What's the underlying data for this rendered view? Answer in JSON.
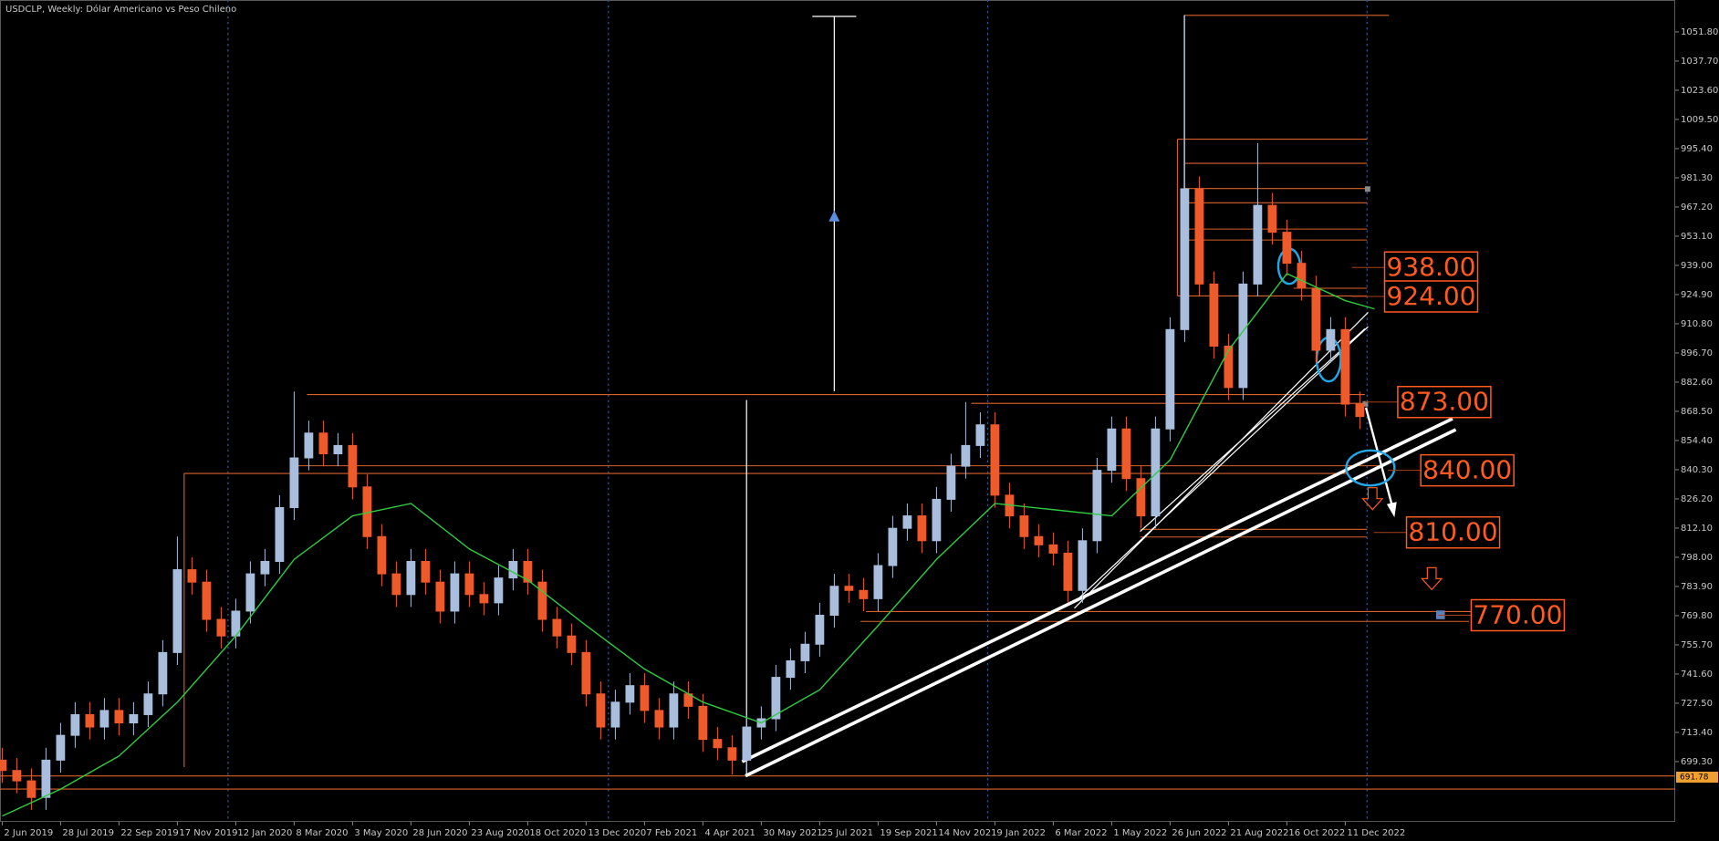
{
  "chart_data": {
    "type": "candlestick",
    "title": "USDCLP, Weekly:  Dólar Americano vs Peso Chileno",
    "x": [
      0,
      2,
      4,
      6,
      8,
      10,
      12,
      14,
      16,
      18,
      20,
      22,
      24,
      26,
      28,
      30,
      32,
      34,
      36,
      38,
      40,
      42,
      44,
      46,
      48,
      50,
      52,
      54,
      56,
      58,
      60,
      62,
      64,
      66,
      68,
      70,
      72,
      74,
      76,
      78,
      80,
      82,
      84,
      86,
      88,
      90,
      92,
      94,
      96,
      98,
      100,
      102,
      104,
      106,
      108,
      110,
      112,
      114,
      116,
      118,
      120,
      122,
      124,
      126,
      128,
      130,
      132,
      134,
      136,
      138,
      140,
      142,
      144,
      146,
      148,
      150,
      152,
      154,
      156,
      158,
      160,
      162,
      164,
      166,
      168,
      170,
      172,
      174,
      176,
      178,
      180,
      182,
      184,
      186
    ],
    "open": [
      700,
      695,
      690,
      682,
      700,
      712,
      722,
      716,
      724,
      718,
      722,
      732,
      752,
      792,
      786,
      768,
      760,
      772,
      790,
      796,
      822,
      846,
      858,
      848,
      852,
      832,
      808,
      790,
      780,
      796,
      786,
      772,
      790,
      780,
      776,
      788,
      796,
      786,
      768,
      760,
      752,
      732,
      716,
      728,
      736,
      724,
      716,
      732,
      726,
      710,
      706,
      700,
      716,
      720,
      740,
      748,
      756,
      770,
      784,
      782,
      778,
      794,
      812,
      818,
      806,
      826,
      842,
      852,
      862,
      828,
      818,
      808,
      804,
      800,
      782,
      806,
      840,
      860,
      836,
      818,
      860,
      908,
      976,
      930,
      900,
      880,
      930,
      968,
      955,
      940,
      928,
      898,
      908,
      872
    ],
    "high": [
      706,
      701,
      696,
      706,
      718,
      728,
      728,
      730,
      730,
      728,
      738,
      758,
      808,
      798,
      792,
      774,
      778,
      796,
      802,
      828,
      878,
      864,
      864,
      858,
      858,
      838,
      814,
      796,
      802,
      802,
      792,
      796,
      796,
      786,
      794,
      802,
      802,
      792,
      774,
      766,
      758,
      738,
      734,
      742,
      742,
      730,
      738,
      738,
      732,
      716,
      712,
      722,
      726,
      746,
      754,
      762,
      776,
      790,
      790,
      788,
      800,
      818,
      824,
      824,
      832,
      848,
      873,
      868,
      868,
      834,
      824,
      814,
      810,
      806,
      812,
      846,
      866,
      866,
      842,
      866,
      914,
      1060,
      982,
      936,
      906,
      936,
      998,
      974,
      961,
      946,
      934,
      914,
      914,
      878
    ],
    "low": [
      689,
      684,
      676,
      676,
      694,
      706,
      710,
      710,
      712,
      712,
      716,
      726,
      746,
      780,
      762,
      754,
      754,
      766,
      784,
      790,
      816,
      840,
      842,
      842,
      826,
      802,
      784,
      774,
      774,
      780,
      766,
      766,
      774,
      770,
      770,
      782,
      780,
      762,
      754,
      746,
      726,
      710,
      710,
      722,
      718,
      710,
      710,
      720,
      704,
      700,
      693,
      694,
      710,
      714,
      734,
      742,
      750,
      764,
      776,
      772,
      772,
      788,
      806,
      800,
      800,
      820,
      836,
      846,
      822,
      812,
      802,
      798,
      794,
      776,
      776,
      800,
      834,
      830,
      812,
      812,
      854,
      902,
      924,
      894,
      874,
      874,
      924,
      949,
      934,
      922,
      892,
      892,
      866,
      860
    ],
    "close": [
      695,
      690,
      682,
      700,
      712,
      722,
      716,
      724,
      718,
      722,
      732,
      752,
      792,
      786,
      768,
      760,
      772,
      790,
      796,
      822,
      846,
      858,
      848,
      852,
      832,
      808,
      790,
      780,
      796,
      786,
      772,
      790,
      780,
      776,
      788,
      796,
      786,
      768,
      760,
      752,
      732,
      716,
      728,
      736,
      724,
      716,
      732,
      726,
      710,
      706,
      700,
      716,
      720,
      740,
      748,
      756,
      770,
      784,
      782,
      778,
      794,
      812,
      818,
      806,
      826,
      842,
      852,
      862,
      828,
      818,
      808,
      804,
      800,
      782,
      806,
      840,
      860,
      836,
      818,
      860,
      908,
      976,
      930,
      900,
      880,
      930,
      968,
      955,
      940,
      928,
      898,
      908,
      872,
      866
    ],
    "up_color": "#a9bddc",
    "down_color": "#ee5b2a",
    "ma": {
      "color": "#2ecc40",
      "x": [
        0,
        8,
        16,
        24,
        32,
        40,
        48,
        56,
        64,
        72,
        80,
        88,
        96,
        104,
        112,
        120,
        128,
        136,
        144,
        152,
        160,
        168,
        176,
        184,
        188
      ],
      "values": [
        673,
        686,
        702,
        728,
        760,
        797,
        818,
        824,
        802,
        787,
        765,
        744,
        728,
        718,
        734,
        765,
        797,
        824,
        821,
        818,
        845,
        898,
        935,
        922,
        918
      ]
    },
    "xlim": [
      -0.3,
      229.2
    ],
    "ylim": [
      670.2,
      1067.2
    ],
    "yticks": [
      {
        "value": 1051.8,
        "label": "1051.80"
      },
      {
        "value": 1037.7,
        "label": "1037.70"
      },
      {
        "value": 1023.6,
        "label": "1023.60"
      },
      {
        "value": 1009.5,
        "label": "1009.50"
      },
      {
        "value": 995.4,
        "label": "995.40"
      },
      {
        "value": 981.3,
        "label": "981.30"
      },
      {
        "value": 967.2,
        "label": "967.20"
      },
      {
        "value": 953.1,
        "label": "953.10"
      },
      {
        "value": 939,
        "label": "939.00"
      },
      {
        "value": 924.9,
        "label": "924.90"
      },
      {
        "value": 910.8,
        "label": "910.80"
      },
      {
        "value": 896.7,
        "label": "896.70"
      },
      {
        "value": 882.6,
        "label": "882.60"
      },
      {
        "value": 868.5,
        "label": "868.50"
      },
      {
        "value": 854.4,
        "label": "854.40"
      },
      {
        "value": 840.3,
        "label": "840.30"
      },
      {
        "value": 826.2,
        "label": "826.20"
      },
      {
        "value": 812.1,
        "label": "812.10"
      },
      {
        "value": 798,
        "label": "798.00"
      },
      {
        "value": 783.9,
        "label": "783.90"
      },
      {
        "value": 769.8,
        "label": "769.80"
      },
      {
        "value": 755.7,
        "label": "755.70"
      },
      {
        "value": 741.6,
        "label": "741.60"
      },
      {
        "value": 727.5,
        "label": "727.50"
      },
      {
        "value": 713.4,
        "label": "713.40"
      },
      {
        "value": 699.3,
        "label": "699.30"
      }
    ],
    "xticks": [
      {
        "value": 0,
        "label": "2 Jun 2019"
      },
      {
        "value": 8,
        "label": "28 Jul 2019"
      },
      {
        "value": 16,
        "label": "22 Sep 2019"
      },
      {
        "value": 24,
        "label": "17 Nov 2019"
      },
      {
        "value": 32,
        "label": "12 Jan 2020"
      },
      {
        "value": 40,
        "label": "8 Mar 2020"
      },
      {
        "value": 48,
        "label": "3 May 2020"
      },
      {
        "value": 56,
        "label": "28 Jun 2020"
      },
      {
        "value": 64,
        "label": "23 Aug 2020"
      },
      {
        "value": 72,
        "label": "18 Oct 2020"
      },
      {
        "value": 80,
        "label": "13 Dec 2020"
      },
      {
        "value": 88,
        "label": "7 Feb 2021"
      },
      {
        "value": 96,
        "label": "4 Apr 2021"
      },
      {
        "value": 104,
        "label": "30 May 2021"
      },
      {
        "value": 112,
        "label": "25 Jul 2021"
      },
      {
        "value": 120,
        "label": "19 Sep 2021"
      },
      {
        "value": 128,
        "label": "14 Nov 2021"
      },
      {
        "value": 136,
        "label": "9 Jan 2022"
      },
      {
        "value": 144,
        "label": "6 Mar 2022"
      },
      {
        "value": 152,
        "label": "1 May 2022"
      },
      {
        "value": 160,
        "label": "26 Jun 2022"
      },
      {
        "value": 168,
        "label": "21 Aug 2022"
      },
      {
        "value": 176,
        "label": "16 Oct 2022"
      },
      {
        "value": 184,
        "label": "11 Dec 2022"
      }
    ],
    "annotations": [
      {
        "value": 938,
        "label": "938.00"
      },
      {
        "value": 924,
        "label": "924.00"
      },
      {
        "value": 873,
        "label": "873.00"
      },
      {
        "value": 840,
        "label": "840.00"
      },
      {
        "value": 810,
        "label": "810.00"
      },
      {
        "value": 770,
        "label": "770.00"
      }
    ],
    "price_marker": {
      "value": 691.78,
      "label": "691.78",
      "color": "#f0a030"
    }
  }
}
